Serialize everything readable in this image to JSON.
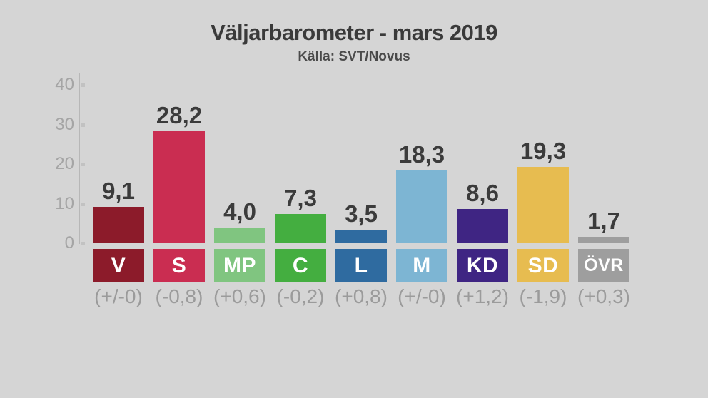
{
  "page": {
    "title": "Väljarbarometer - mars 2019",
    "subtitle": "Källa: SVT/Novus"
  },
  "colors": {
    "background": "#d5d5d5",
    "title_text": "#3a3a3a",
    "subtitle_text": "#4a4a4a",
    "value_text": "#3b3b3b",
    "axis_line": "#b7b7b7",
    "axis_tick": "#c2c2c2",
    "axis_label_text": "#a5a5a5",
    "change_text": "#9b9b9b",
    "party_letter_text": "#ffffff"
  },
  "chart_data": {
    "type": "bar",
    "title": "Väljarbarometer - mars 2019",
    "subtitle": "Källa: SVT/Novus",
    "categories": [
      "V",
      "S",
      "MP",
      "C",
      "L",
      "M",
      "KD",
      "SD",
      "ÖVR"
    ],
    "values": [
      9.1,
      28.2,
      4.0,
      7.3,
      3.5,
      18.3,
      8.6,
      19.3,
      1.7
    ],
    "value_labels": [
      "9,1",
      "28,2",
      "4,0",
      "7,3",
      "3,5",
      "18,3",
      "8,6",
      "19,3",
      "1,7"
    ],
    "changes": [
      "(+/-0)",
      "(-0,8)",
      "(+0,6)",
      "(-0,2)",
      "(+0,8)",
      "(+/-0)",
      "(+1,2)",
      "(-1,9)",
      "(+0,3)"
    ],
    "bar_colors": [
      "#8c1b2a",
      "#ca2d51",
      "#80c580",
      "#44ae40",
      "#2f6ba0",
      "#7db5d3",
      "#3f2583",
      "#e7bc50",
      "#9e9e9e"
    ],
    "xlabel": "",
    "ylabel": "",
    "ylim": [
      0,
      40
    ],
    "yticks": [
      0,
      10,
      20,
      30,
      40
    ],
    "grid": false,
    "legend": "none"
  }
}
